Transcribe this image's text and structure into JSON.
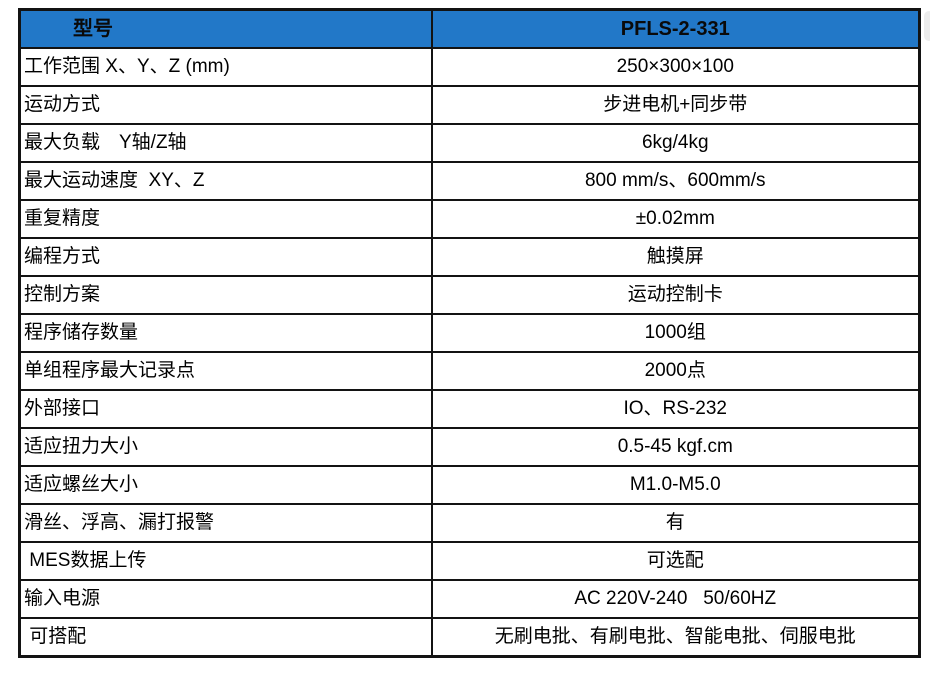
{
  "colors": {
    "header_bg": "#2278C8",
    "border": "#131313",
    "text": "#000000",
    "edge_sliver": "#ECECEC"
  },
  "table": {
    "header": {
      "label": "型号",
      "value": "PFLS-2-331"
    },
    "rows": [
      {
        "label": "工作范围 X、Y、Z (mm)",
        "value": "250×300×100"
      },
      {
        "label": "运动方式",
        "value": "步进电机+同步带"
      },
      {
        "label": "最大负载　Y轴/Z轴",
        "value": "6kg/4kg"
      },
      {
        "label": "最大运动速度  XY、Z",
        "value": "800 mm/s、600mm/s"
      },
      {
        "label": "重复精度",
        "value": "±0.02mm"
      },
      {
        "label": "编程方式",
        "value": "触摸屏"
      },
      {
        "label": "控制方案",
        "value": "运动控制卡"
      },
      {
        "label": "程序储存数量",
        "value": "1000组"
      },
      {
        "label": "单组程序最大记录点",
        "value": "2000点"
      },
      {
        "label": "外部接口",
        "value": "IO、RS-232"
      },
      {
        "label": "适应扭力大小",
        "value": "0.5-45 kgf.cm"
      },
      {
        "label": "适应螺丝大小",
        "value": "M1.0-M5.0"
      },
      {
        "label": "滑丝、浮高、漏打报警",
        "value": "有"
      },
      {
        "label": " MES数据上传",
        "value": "可选配"
      },
      {
        "label": "输入电源",
        "value": "AC 220V-240   50/60HZ"
      },
      {
        "label": " 可搭配",
        "value": "无刷电批、有刷电批、智能电批、伺服电批"
      }
    ]
  }
}
